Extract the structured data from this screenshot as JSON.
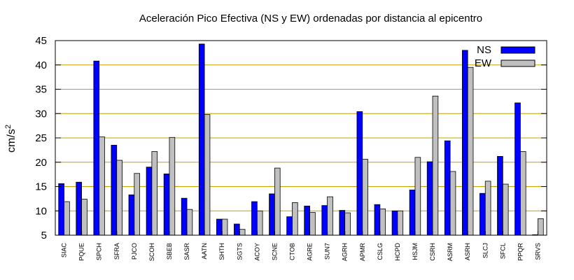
{
  "chart_data": {
    "type": "bar",
    "title": "Aceleración Pico Efectiva (NS y EW) ordenadas por distancia al epicentro",
    "xlabel": "",
    "ylabel": "cm/s",
    "ylabel_exponent": "2",
    "ylim": [
      5,
      45
    ],
    "yticks": [
      5,
      10,
      15,
      20,
      25,
      30,
      35,
      40,
      45
    ],
    "grid": true,
    "legend_position": "top-right",
    "categories": [
      "SIAC",
      "PQUE",
      "SPCH",
      "SFRA",
      "PJCO",
      "SCOH",
      "SBEB",
      "SASR",
      "AATN",
      "SHTH",
      "SGTS",
      "ACOY",
      "SCNE",
      "CTOB",
      "AGRE",
      "SUN7",
      "AGRH",
      "APMR",
      "CSLG",
      "HCPD",
      "HSJM",
      "CSRH",
      "ASRM",
      "ASRH",
      "SLCJ",
      "SFCL",
      "PPQR",
      "SRVS"
    ],
    "series": [
      {
        "name": "NS",
        "color": "#0000ff",
        "values": [
          15.6,
          15.9,
          40.8,
          23.5,
          13.3,
          19.0,
          17.6,
          12.6,
          44.3,
          8.3,
          7.3,
          11.9,
          13.5,
          8.8,
          11.0,
          11.1,
          10.1,
          30.4,
          11.3,
          10.0,
          14.3,
          20.1,
          24.4,
          43.0,
          13.6,
          21.2,
          32.2,
          5.1
        ]
      },
      {
        "name": "EW",
        "color": "#c0c0c0",
        "values": [
          11.9,
          12.4,
          25.2,
          20.4,
          17.7,
          22.2,
          25.1,
          10.3,
          29.8,
          8.3,
          6.2,
          10.0,
          18.8,
          11.7,
          9.7,
          12.9,
          9.6,
          20.6,
          10.4,
          10.0,
          21.0,
          33.6,
          18.1,
          39.5,
          16.1,
          15.5,
          22.2,
          8.4
        ]
      }
    ]
  }
}
